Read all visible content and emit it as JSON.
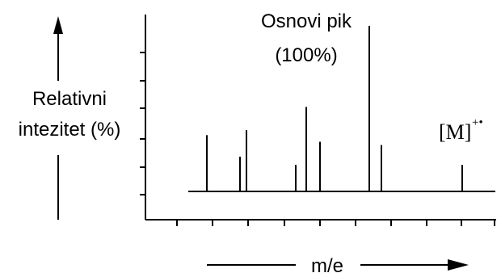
{
  "chart_data": {
    "type": "bar",
    "title": "",
    "ylabel_line1": "Relativni",
    "ylabel_line2": "intezitet (%)",
    "xlabel": "m/e",
    "base_peak_line1": "Osnovi pik",
    "base_peak_line2": "(100%)",
    "molecular_ion_label": "[M]",
    "molecular_ion_superscript": "+•",
    "ylim": [
      0,
      100
    ],
    "peaks": [
      {
        "index": 1,
        "intensity": 34
      },
      {
        "index": 2,
        "intensity": 21
      },
      {
        "index": 3,
        "intensity": 37
      },
      {
        "index": 4,
        "intensity": 16
      },
      {
        "index": 5,
        "intensity": 51
      },
      {
        "index": 6,
        "intensity": 30
      },
      {
        "index": 7,
        "intensity": 100
      },
      {
        "index": 8,
        "intensity": 28
      },
      {
        "index": 9,
        "intensity": 16
      }
    ],
    "grid": false,
    "legend": "none"
  }
}
